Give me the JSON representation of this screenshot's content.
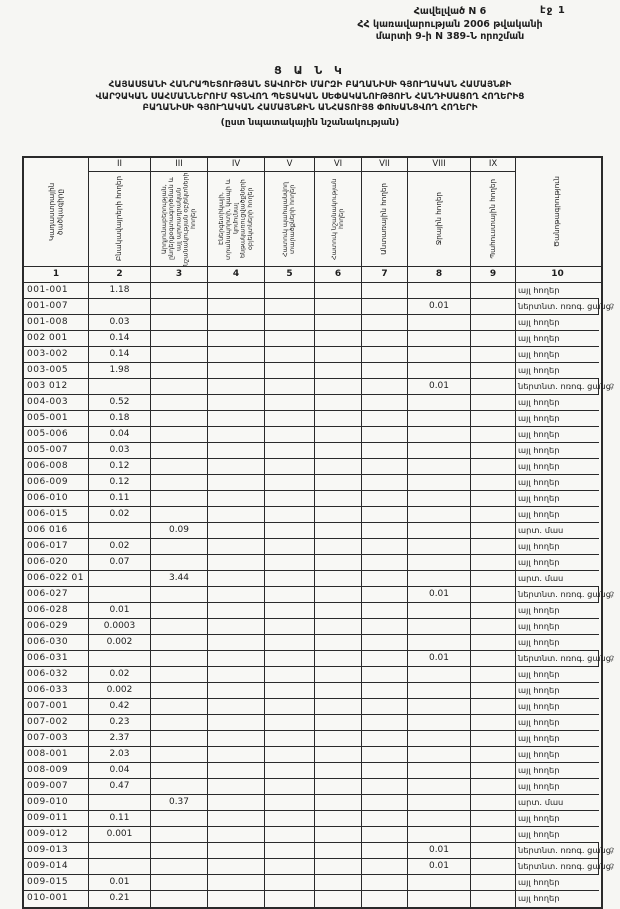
{
  "page": {
    "number_label": "էջ 1"
  },
  "header": {
    "appendix": "Հավելված N 6",
    "line2": "ՀՀ կառավարության 2006 թվականի",
    "line3": "մարտի 9-ի N 389-Ն որոշման"
  },
  "title": {
    "line1": "Ց Ա Ն Կ",
    "line2": "ՀԱՅԱՍՏԱՆԻ ՀԱՆՐԱՊԵՏՈՒԹՅԱՆ ՏԱՎՈՒՇԻ ՄԱՐԶԻ ԲԱՂԱՆԻՍԻ ԳՅՈՒՂԱԿԱՆ ՀԱՄԱՅՆՔԻ",
    "line3": "ՎԱՐՉԱԿԱՆ ՍԱՀՄԱՆՆԵՐՈՒՄ ԳՏՆՎՈՂ ՊԵՏԱԿԱՆ ՍԵՓԱԿԱՆՈՒԹՅՈՒՆ ՀԱՆԴԻՍԱՑՈՂ ՀՈՂԵՐԻՑ",
    "line4": "ԲԱՂԱՆԻՍԻ ԳՅՈՒՂԱԿԱՆ ՀԱՄԱՅՆՔԻՆ ԱՆՀԱՏՈՒՅՑ ՓՈԽԱՆՑՎՈՂ ՀՈՂԵՐԻ",
    "line5": "(ըստ նպատակային նշանակության)"
  },
  "table": {
    "roman_numerals": [
      "II",
      "III",
      "IV",
      "V",
      "VI",
      "VII",
      "VIII",
      "IX"
    ],
    "column_numbers": [
      "1",
      "2",
      "3",
      "4",
      "5",
      "6",
      "7",
      "8",
      "9",
      "10"
    ],
    "columns": [
      {
        "label": "Կադաստրային ծածկագիրը"
      },
      {
        "label": "Բնակավայրերի հողեր"
      },
      {
        "label": "Արդյունաբերության, ընդերքօգտագործման և այլ արտադրական նշանակության օբյեկտների հողեր"
      },
      {
        "label": "Էներգետիկայի, տրանսպորտի, կապի և կոմունալ ենթակառուցվածքների օբյեկտների հողեր"
      },
      {
        "label": "Հատուկ պահպանվող տարածքների հողեր"
      },
      {
        "label": "Հատուկ նշանակության հողեր"
      },
      {
        "label": "Անտառային հողեր"
      },
      {
        "label": "Ջրային հողեր"
      },
      {
        "label": "Պահուստային հողեր"
      },
      {
        "label": "Ծանոթագրություն"
      }
    ],
    "rows": [
      {
        "cells": [
          "001-001",
          "1.18",
          "",
          "",
          "",
          "",
          "",
          "",
          "",
          "այլ հողեր"
        ],
        "mark": ""
      },
      {
        "cells": [
          "001-007",
          "",
          "",
          "",
          "",
          "",
          "",
          "0.01",
          "",
          "ներտնտ. ոռոգ. ցանց"
        ],
        "mark": "գ"
      },
      {
        "cells": [
          "001-008",
          "0.03",
          "",
          "",
          "",
          "",
          "",
          "",
          "",
          "այլ հողեր"
        ],
        "mark": ""
      },
      {
        "cells": [
          "002 001",
          "0.14",
          "",
          "",
          "",
          "",
          "",
          "",
          "",
          "այլ հողեր"
        ],
        "mark": ""
      },
      {
        "cells": [
          "003-002",
          "0.14",
          "",
          "",
          "",
          "",
          "",
          "",
          "",
          "այլ հողեր"
        ],
        "mark": ""
      },
      {
        "cells": [
          "003-005",
          "1.98",
          "",
          "",
          "",
          "",
          "",
          "",
          "",
          "այլ հողեր"
        ],
        "mark": ""
      },
      {
        "cells": [
          "003 012",
          "",
          "",
          "",
          "",
          "",
          "",
          "0.01",
          "",
          "ներտնտ. ոռոգ. ցանց"
        ],
        "mark": "գ"
      },
      {
        "cells": [
          "004-003",
          "0.52",
          "",
          "",
          "",
          "",
          "",
          "",
          "",
          "այլ հողեր"
        ],
        "mark": ""
      },
      {
        "cells": [
          "005-001",
          "0.18",
          "",
          "",
          "",
          "",
          "",
          "",
          "",
          "այլ հողեր"
        ],
        "mark": ""
      },
      {
        "cells": [
          "005-006",
          "0.04",
          "",
          "",
          "",
          "",
          "",
          "",
          "",
          "այլ հողեր"
        ],
        "mark": ""
      },
      {
        "cells": [
          "005-007",
          "0.03",
          "",
          "",
          "",
          "",
          "",
          "",
          "",
          "այլ հողեր"
        ],
        "mark": ""
      },
      {
        "cells": [
          "006-008",
          "0.12",
          "",
          "",
          "",
          "",
          "",
          "",
          "",
          "այլ հողեր"
        ],
        "mark": ""
      },
      {
        "cells": [
          "006-009",
          "0.12",
          "",
          "",
          "",
          "",
          "",
          "",
          "",
          "այլ հողեր"
        ],
        "mark": ""
      },
      {
        "cells": [
          "006-010",
          "0.11",
          "",
          "",
          "",
          "",
          "",
          "",
          "",
          "այլ հողեր"
        ],
        "mark": ""
      },
      {
        "cells": [
          "006-015",
          "0.02",
          "",
          "",
          "",
          "",
          "",
          "",
          "",
          "այլ հողեր"
        ],
        "mark": ""
      },
      {
        "cells": [
          "006 016",
          "",
          "0.09",
          "",
          "",
          "",
          "",
          "",
          "",
          "արտ. մաս"
        ],
        "mark": ""
      },
      {
        "cells": [
          "006-017",
          "0.02",
          "",
          "",
          "",
          "",
          "",
          "",
          "",
          "այլ հողեր"
        ],
        "mark": ""
      },
      {
        "cells": [
          "006-020",
          "0.07",
          "",
          "",
          "",
          "",
          "",
          "",
          "",
          "այլ հողեր"
        ],
        "mark": ""
      },
      {
        "cells": [
          "006-022 01",
          "",
          "3.44",
          "",
          "",
          "",
          "",
          "",
          "",
          "արտ. մաս"
        ],
        "mark": ""
      },
      {
        "cells": [
          "006-027",
          "",
          "",
          "",
          "",
          "",
          "",
          "0.01",
          "",
          "ներտնտ. ոռոգ. ցանց"
        ],
        "mark": "գ"
      },
      {
        "cells": [
          "006-028",
          "0.01",
          "",
          "",
          "",
          "",
          "",
          "",
          "",
          "այլ հողեր"
        ],
        "mark": ""
      },
      {
        "cells": [
          "006-029",
          "0.0003",
          "",
          "",
          "",
          "",
          "",
          "",
          "",
          "այլ հողեր"
        ],
        "mark": ""
      },
      {
        "cells": [
          "006-030",
          "0.002",
          "",
          "",
          "",
          "",
          "",
          "",
          "",
          "այլ հողեր"
        ],
        "mark": ""
      },
      {
        "cells": [
          "006-031",
          "",
          "",
          "",
          "",
          "",
          "",
          "0.01",
          "",
          "ներտնտ. ոռոգ. ցանց"
        ],
        "mark": "գ"
      },
      {
        "cells": [
          "006-032",
          "0.02",
          "",
          "",
          "",
          "",
          "",
          "",
          "",
          "այլ հողեր"
        ],
        "mark": ""
      },
      {
        "cells": [
          "006-033",
          "0.002",
          "",
          "",
          "",
          "",
          "",
          "",
          "",
          "այլ հողեր"
        ],
        "mark": ""
      },
      {
        "cells": [
          "007-001",
          "0.42",
          "",
          "",
          "",
          "",
          "",
          "",
          "",
          "այլ հողեր"
        ],
        "mark": ""
      },
      {
        "cells": [
          "007-002",
          "0.23",
          "",
          "",
          "",
          "",
          "",
          "",
          "",
          "այլ հողեր"
        ],
        "mark": ""
      },
      {
        "cells": [
          "007-003",
          "2.37",
          "",
          "",
          "",
          "",
          "",
          "",
          "",
          "այլ հողեր"
        ],
        "mark": ""
      },
      {
        "cells": [
          "008-001",
          "2.03",
          "",
          "",
          "",
          "",
          "",
          "",
          "",
          "այլ հողեր"
        ],
        "mark": ""
      },
      {
        "cells": [
          "008-009",
          "0.04",
          "",
          "",
          "",
          "",
          "",
          "",
          "",
          "այլ հողեր"
        ],
        "mark": ""
      },
      {
        "cells": [
          "009-007",
          "0.47",
          "",
          "",
          "",
          "",
          "",
          "",
          "",
          "այլ հողեր"
        ],
        "mark": ""
      },
      {
        "cells": [
          "009-010",
          "",
          "0.37",
          "",
          "",
          "",
          "",
          "",
          "",
          "արտ. մաս"
        ],
        "mark": ""
      },
      {
        "cells": [
          "009-011",
          "0.11",
          "",
          "",
          "",
          "",
          "",
          "",
          "",
          "այլ հողեր"
        ],
        "mark": ""
      },
      {
        "cells": [
          "009-012",
          "0.001",
          "",
          "",
          "",
          "",
          "",
          "",
          "",
          "այլ հողեր"
        ],
        "mark": ""
      },
      {
        "cells": [
          "009-013",
          "",
          "",
          "",
          "",
          "",
          "",
          "0.01",
          "",
          "ներտնտ. ոռոգ. ցանց"
        ],
        "mark": "գ"
      },
      {
        "cells": [
          "009-014",
          "",
          "",
          "",
          "",
          "",
          "",
          "0.01",
          "",
          "ներտնտ. ոռոգ. ցանց"
        ],
        "mark": "գ"
      },
      {
        "cells": [
          "009-015",
          "0.01",
          "",
          "",
          "",
          "",
          "",
          "",
          "",
          "այլ հողեր"
        ],
        "mark": ""
      },
      {
        "cells": [
          "010-001",
          "0.21",
          "",
          "",
          "",
          "",
          "",
          "",
          "",
          "այլ հողեր"
        ],
        "mark": ""
      }
    ]
  }
}
